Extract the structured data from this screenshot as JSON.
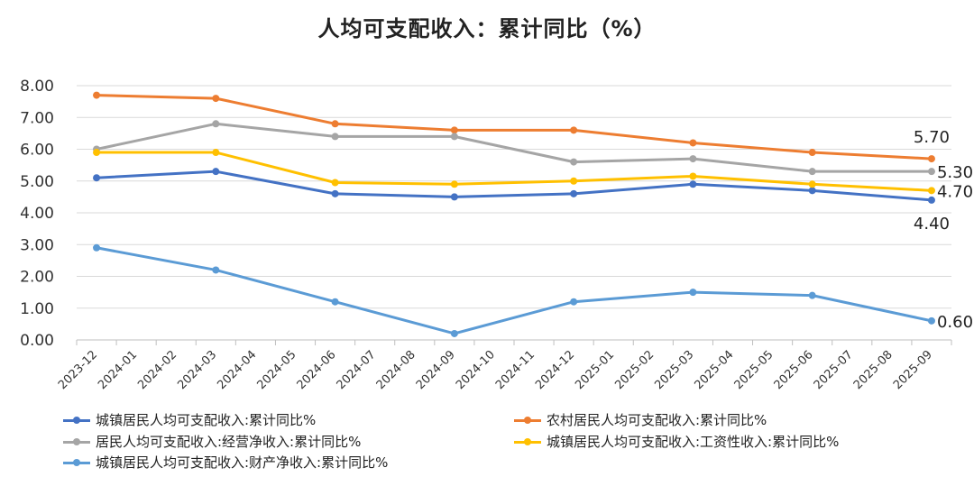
{
  "chart_data": {
    "type": "line",
    "title": "人均可支配收入：累计同比（%）",
    "categories": [
      "2023-12",
      "2024-01",
      "2024-02",
      "2024-03",
      "2024-04",
      "2024-05",
      "2024-06",
      "2024-07",
      "2024-08",
      "2024-09",
      "2024-10",
      "2024-11",
      "2024-12",
      "2025-01",
      "2025-02",
      "2025-03",
      "2025-04",
      "2025-05",
      "2025-06",
      "2025-07",
      "2025-08",
      "2025-09"
    ],
    "yticks": [
      "0.00",
      "1.00",
      "2.00",
      "3.00",
      "4.00",
      "5.00",
      "6.00",
      "7.00",
      "8.00"
    ],
    "ylim": [
      0,
      8.5
    ],
    "grid": true,
    "legend_position": "bottom",
    "series": [
      {
        "name": "城镇居民人均可支配收入:累计同比%",
        "color": "#4472C4",
        "points": [
          {
            "x": "2023-12",
            "y": 5.1
          },
          {
            "x": "2024-03",
            "y": 5.3
          },
          {
            "x": "2024-06",
            "y": 4.6
          },
          {
            "x": "2024-09",
            "y": 4.5
          },
          {
            "x": "2024-12",
            "y": 4.6
          },
          {
            "x": "2025-03",
            "y": 4.9
          },
          {
            "x": "2025-06",
            "y": 4.7
          },
          {
            "x": "2025-09",
            "y": 4.4
          }
        ],
        "end_label": "4.40"
      },
      {
        "name": "农村居民人均可支配收入:累计同比%",
        "color": "#ED7D31",
        "points": [
          {
            "x": "2023-12",
            "y": 7.7
          },
          {
            "x": "2024-03",
            "y": 7.6
          },
          {
            "x": "2024-06",
            "y": 6.8
          },
          {
            "x": "2024-09",
            "y": 6.6
          },
          {
            "x": "2024-12",
            "y": 6.6
          },
          {
            "x": "2025-03",
            "y": 6.2
          },
          {
            "x": "2025-06",
            "y": 5.9
          },
          {
            "x": "2025-09",
            "y": 5.7
          }
        ],
        "end_label": "5.70"
      },
      {
        "name": "居民人均可支配收入:经营净收入:累计同比%",
        "color": "#A5A5A5",
        "points": [
          {
            "x": "2023-12",
            "y": 6.0
          },
          {
            "x": "2024-03",
            "y": 6.8
          },
          {
            "x": "2024-06",
            "y": 6.4
          },
          {
            "x": "2024-09",
            "y": 6.4
          },
          {
            "x": "2024-12",
            "y": 5.6
          },
          {
            "x": "2025-03",
            "y": 5.7
          },
          {
            "x": "2025-06",
            "y": 5.3
          },
          {
            "x": "2025-09",
            "y": 5.3
          }
        ],
        "end_label": "5.30"
      },
      {
        "name": "城镇居民人均可支配收入:工资性收入:累计同比%",
        "color": "#FFC000",
        "points": [
          {
            "x": "2023-12",
            "y": 5.9
          },
          {
            "x": "2024-03",
            "y": 5.9
          },
          {
            "x": "2024-06",
            "y": 4.95
          },
          {
            "x": "2024-09",
            "y": 4.9
          },
          {
            "x": "2024-12",
            "y": 5.0
          },
          {
            "x": "2025-03",
            "y": 5.15
          },
          {
            "x": "2025-06",
            "y": 4.9
          },
          {
            "x": "2025-09",
            "y": 4.7
          }
        ],
        "end_label": "4.70"
      },
      {
        "name": "城镇居民人均可支配收入:财产净收入:累计同比%",
        "color": "#5B9BD5",
        "points": [
          {
            "x": "2023-12",
            "y": 2.9
          },
          {
            "x": "2024-03",
            "y": 2.2
          },
          {
            "x": "2024-06",
            "y": 1.2
          },
          {
            "x": "2024-09",
            "y": 0.2
          },
          {
            "x": "2024-12",
            "y": 1.2
          },
          {
            "x": "2025-03",
            "y": 1.5
          },
          {
            "x": "2025-06",
            "y": 1.4
          },
          {
            "x": "2025-09",
            "y": 0.6
          }
        ],
        "end_label": "0.60"
      }
    ]
  }
}
